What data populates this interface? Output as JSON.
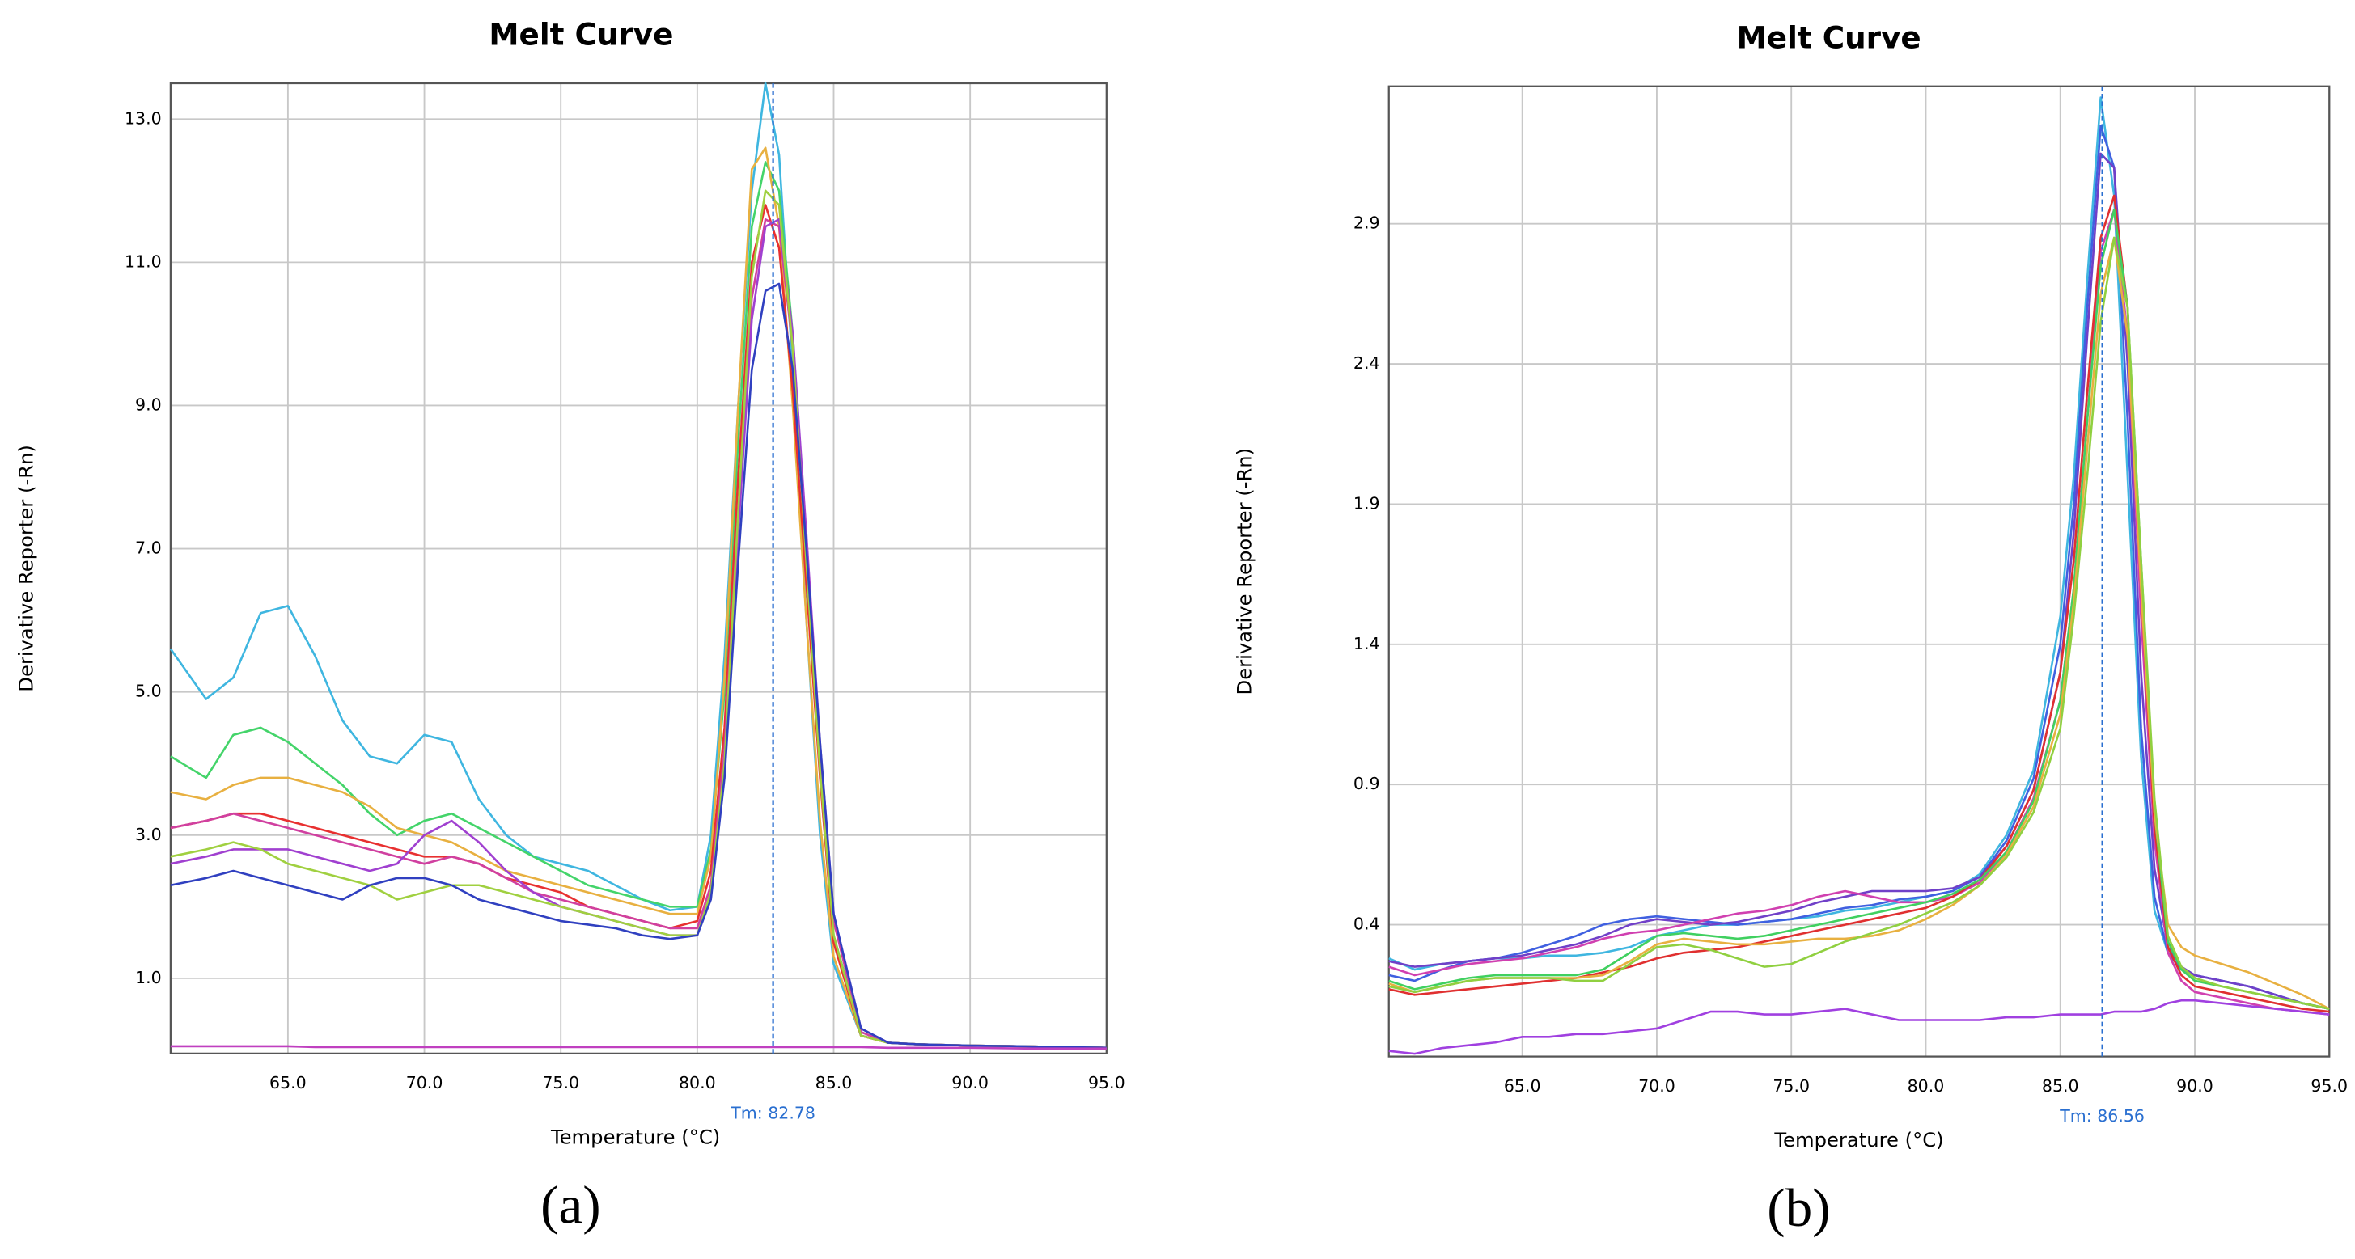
{
  "chart_data": [
    {
      "type": "line",
      "title": "Melt Curve",
      "xlabel": "Temperature (°C)",
      "ylabel": "Derivative Reporter (-Rn)",
      "caption": "(a)",
      "tm": {
        "value": 82.78,
        "label": "Tm: 82.78"
      },
      "xlim": [
        60.7,
        95
      ],
      "ylim": [
        -0.05,
        13.5
      ],
      "grid": true,
      "xticks": [
        {
          "value": 65,
          "label": "65.0"
        },
        {
          "value": 70,
          "label": "70.0"
        },
        {
          "value": 75,
          "label": "75.0"
        },
        {
          "value": 80,
          "label": "80.0"
        },
        {
          "value": 85,
          "label": "85.0"
        },
        {
          "value": 90,
          "label": "90.0"
        },
        {
          "value": 95,
          "label": "95.0"
        }
      ],
      "yticks": [
        {
          "value": 1,
          "label": "1.0"
        },
        {
          "value": 3,
          "label": "3.0"
        },
        {
          "value": 5,
          "label": "5.0"
        },
        {
          "value": 7,
          "label": "7.0"
        },
        {
          "value": 9,
          "label": "9.0"
        },
        {
          "value": 11,
          "label": "11.0"
        },
        {
          "value": 13,
          "label": "13.0"
        }
      ],
      "x": [
        60.7,
        62,
        63,
        64,
        65,
        66,
        67,
        68,
        69,
        70,
        71,
        72,
        73,
        74,
        75,
        76,
        77,
        78,
        79,
        80,
        80.5,
        81,
        81.5,
        82,
        82.5,
        83,
        83.5,
        84,
        84.5,
        85,
        86,
        87,
        88,
        90,
        92,
        95
      ],
      "series": [
        {
          "color": "#3fb6e0",
          "values": [
            5.6,
            4.9,
            5.2,
            6.1,
            6.2,
            5.5,
            4.6,
            4.1,
            4.0,
            4.4,
            4.3,
            3.5,
            3.0,
            2.7,
            2.6,
            2.5,
            2.3,
            2.1,
            1.95,
            2.0,
            3.0,
            5.5,
            9.0,
            12.0,
            13.5,
            12.5,
            9.5,
            6.0,
            3.0,
            1.2,
            0.2,
            0.1,
            0.08,
            0.06,
            0.05,
            0.03
          ]
        },
        {
          "color": "#44d46a",
          "values": [
            4.1,
            3.8,
            4.4,
            4.5,
            4.3,
            4.0,
            3.7,
            3.3,
            3.0,
            3.2,
            3.3,
            3.1,
            2.9,
            2.7,
            2.5,
            2.3,
            2.2,
            2.1,
            2.0,
            2.0,
            2.8,
            5.0,
            8.5,
            11.5,
            12.4,
            12.0,
            10.0,
            7.0,
            4.0,
            1.6,
            0.25,
            0.1,
            0.08,
            0.06,
            0.05,
            0.03
          ]
        },
        {
          "color": "#e8b040",
          "values": [
            3.6,
            3.5,
            3.7,
            3.8,
            3.8,
            3.7,
            3.6,
            3.4,
            3.1,
            3.0,
            2.9,
            2.7,
            2.5,
            2.4,
            2.3,
            2.2,
            2.1,
            2.0,
            1.9,
            1.9,
            2.7,
            5.2,
            9.0,
            12.3,
            12.6,
            11.5,
            9.0,
            6.0,
            3.2,
            1.3,
            0.2,
            0.1,
            0.08,
            0.06,
            0.05,
            0.03
          ]
        },
        {
          "color": "#e83030",
          "values": [
            3.1,
            3.2,
            3.3,
            3.3,
            3.2,
            3.1,
            3.0,
            2.9,
            2.8,
            2.7,
            2.7,
            2.6,
            2.4,
            2.3,
            2.2,
            2.0,
            1.9,
            1.8,
            1.7,
            1.8,
            2.5,
            4.5,
            8.0,
            11.0,
            11.8,
            11.2,
            9.2,
            6.5,
            3.8,
            1.5,
            0.2,
            0.1,
            0.08,
            0.06,
            0.05,
            0.03
          ]
        },
        {
          "color": "#d040a0",
          "values": [
            3.1,
            3.2,
            3.3,
            3.2,
            3.1,
            3.0,
            2.9,
            2.8,
            2.7,
            2.6,
            2.7,
            2.6,
            2.4,
            2.2,
            2.1,
            2.0,
            1.9,
            1.8,
            1.7,
            1.7,
            2.3,
            4.2,
            7.5,
            10.5,
            11.6,
            11.5,
            9.8,
            7.0,
            4.2,
            1.8,
            0.25,
            0.1,
            0.08,
            0.06,
            0.05,
            0.03
          ]
        },
        {
          "color": "#a040d0",
          "values": [
            2.6,
            2.7,
            2.8,
            2.8,
            2.8,
            2.7,
            2.6,
            2.5,
            2.6,
            3.0,
            3.2,
            2.9,
            2.5,
            2.2,
            2.0,
            1.9,
            1.8,
            1.7,
            1.6,
            1.6,
            2.2,
            4.0,
            7.2,
            10.2,
            11.5,
            11.6,
            10.0,
            7.2,
            4.3,
            1.9,
            0.3,
            0.1,
            0.08,
            0.06,
            0.05,
            0.03
          ]
        },
        {
          "color": "#a0d040",
          "values": [
            2.7,
            2.8,
            2.9,
            2.8,
            2.6,
            2.5,
            2.4,
            2.3,
            2.1,
            2.2,
            2.3,
            2.3,
            2.2,
            2.1,
            2.0,
            1.9,
            1.8,
            1.7,
            1.6,
            1.6,
            2.2,
            4.0,
            7.5,
            10.8,
            12.0,
            11.8,
            9.8,
            6.8,
            3.9,
            1.6,
            0.2,
            0.1,
            0.08,
            0.06,
            0.05,
            0.03
          ]
        },
        {
          "color": "#3040c0",
          "values": [
            2.3,
            2.4,
            2.5,
            2.4,
            2.3,
            2.2,
            2.1,
            2.3,
            2.4,
            2.4,
            2.3,
            2.1,
            2.0,
            1.9,
            1.8,
            1.75,
            1.7,
            1.6,
            1.55,
            1.6,
            2.1,
            3.8,
            6.8,
            9.5,
            10.6,
            10.7,
            9.5,
            7.0,
            4.3,
            1.9,
            0.3,
            0.1,
            0.08,
            0.06,
            0.05,
            0.03
          ]
        },
        {
          "color": "#c040c0",
          "values": [
            0.05,
            0.05,
            0.05,
            0.05,
            0.05,
            0.04,
            0.04,
            0.04,
            0.04,
            0.04,
            0.04,
            0.04,
            0.04,
            0.04,
            0.04,
            0.04,
            0.04,
            0.04,
            0.04,
            0.04,
            0.04,
            0.04,
            0.04,
            0.04,
            0.04,
            0.04,
            0.04,
            0.04,
            0.04,
            0.04,
            0.04,
            0.03,
            0.03,
            0.03,
            0.02,
            0.02
          ]
        }
      ]
    },
    {
      "type": "line",
      "title": "Melt Curve",
      "xlabel": "Temperature (°C)",
      "ylabel": "Derivative Reporter (-Rn)",
      "caption": "(b)",
      "tm": {
        "value": 86.56,
        "label": "Tm: 86.56"
      },
      "xlim": [
        60.04,
        95
      ],
      "ylim": [
        -0.07,
        3.39
      ],
      "grid": true,
      "xticks": [
        {
          "value": 65,
          "label": "65.0"
        },
        {
          "value": 70,
          "label": "70.0"
        },
        {
          "value": 75,
          "label": "75.0"
        },
        {
          "value": 80,
          "label": "80.0"
        },
        {
          "value": 85,
          "label": "85.0"
        },
        {
          "value": 90,
          "label": "90.0"
        },
        {
          "value": 95,
          "label": "95.0"
        }
      ],
      "yticks": [
        0.4,
        0.9,
        1.4,
        1.9,
        2.4,
        2.9
      ],
      "x": [
        60.04,
        61,
        62,
        63,
        64,
        65,
        66,
        67,
        68,
        69,
        70,
        71,
        72,
        73,
        74,
        75,
        76,
        77,
        78,
        79,
        80,
        81,
        82,
        83,
        84,
        85,
        85.5,
        86,
        86.5,
        87,
        87.5,
        88,
        88.5,
        89,
        89.5,
        90,
        91,
        92,
        93,
        94,
        95
      ],
      "series": [
        {
          "color": "#3fb6e0",
          "values": [
            0.28,
            0.24,
            0.26,
            0.27,
            0.28,
            0.28,
            0.29,
            0.29,
            0.3,
            0.32,
            0.36,
            0.38,
            0.4,
            0.4,
            0.41,
            0.42,
            0.43,
            0.45,
            0.46,
            0.48,
            0.5,
            0.52,
            0.58,
            0.72,
            0.95,
            1.5,
            2.0,
            2.7,
            3.35,
            3.0,
            2.0,
            1.0,
            0.45,
            0.3,
            0.24,
            0.22,
            0.2,
            0.18,
            0.15,
            0.12,
            0.1
          ]
        },
        {
          "color": "#4060e0",
          "values": [
            0.22,
            0.2,
            0.24,
            0.27,
            0.28,
            0.3,
            0.33,
            0.36,
            0.4,
            0.42,
            0.43,
            0.42,
            0.41,
            0.4,
            0.41,
            0.42,
            0.44,
            0.46,
            0.47,
            0.49,
            0.5,
            0.52,
            0.57,
            0.7,
            0.92,
            1.4,
            1.9,
            2.6,
            3.25,
            3.1,
            2.2,
            1.1,
            0.5,
            0.3,
            0.24,
            0.22,
            0.2,
            0.18,
            0.15,
            0.12,
            0.1
          ]
        },
        {
          "color": "#7040c8",
          "values": [
            0.27,
            0.25,
            0.26,
            0.27,
            0.28,
            0.29,
            0.31,
            0.33,
            0.36,
            0.4,
            0.42,
            0.41,
            0.4,
            0.41,
            0.43,
            0.45,
            0.48,
            0.5,
            0.52,
            0.52,
            0.52,
            0.53,
            0.57,
            0.68,
            0.88,
            1.3,
            1.8,
            2.5,
            3.15,
            3.1,
            2.4,
            1.3,
            0.6,
            0.32,
            0.25,
            0.22,
            0.2,
            0.18,
            0.15,
            0.12,
            0.1
          ]
        },
        {
          "color": "#d040b0",
          "values": [
            0.25,
            0.22,
            0.24,
            0.26,
            0.27,
            0.28,
            0.3,
            0.32,
            0.35,
            0.37,
            0.38,
            0.4,
            0.42,
            0.44,
            0.45,
            0.47,
            0.5,
            0.52,
            0.5,
            0.48,
            0.48,
            0.5,
            0.55,
            0.66,
            0.85,
            1.2,
            1.6,
            2.2,
            2.8,
            2.95,
            2.5,
            1.5,
            0.7,
            0.3,
            0.2,
            0.16,
            0.14,
            0.12,
            0.1,
            0.09,
            0.08
          ]
        },
        {
          "color": "#e03030",
          "values": [
            0.17,
            0.15,
            0.16,
            0.17,
            0.18,
            0.19,
            0.2,
            0.21,
            0.23,
            0.25,
            0.28,
            0.3,
            0.31,
            0.32,
            0.34,
            0.36,
            0.38,
            0.4,
            0.42,
            0.44,
            0.46,
            0.5,
            0.56,
            0.68,
            0.88,
            1.3,
            1.7,
            2.3,
            2.85,
            3.0,
            2.6,
            1.6,
            0.75,
            0.32,
            0.22,
            0.18,
            0.16,
            0.14,
            0.12,
            0.1,
            0.09
          ]
        },
        {
          "color": "#40d060",
          "values": [
            0.2,
            0.17,
            0.19,
            0.21,
            0.22,
            0.22,
            0.22,
            0.22,
            0.24,
            0.3,
            0.36,
            0.37,
            0.36,
            0.35,
            0.36,
            0.38,
            0.4,
            0.42,
            0.44,
            0.46,
            0.48,
            0.51,
            0.56,
            0.66,
            0.84,
            1.2,
            1.6,
            2.2,
            2.75,
            2.95,
            2.6,
            1.7,
            0.8,
            0.34,
            0.24,
            0.2,
            0.18,
            0.16,
            0.14,
            0.12,
            0.1
          ]
        },
        {
          "color": "#e8b040",
          "values": [
            0.19,
            0.16,
            0.18,
            0.2,
            0.21,
            0.21,
            0.21,
            0.21,
            0.22,
            0.27,
            0.33,
            0.35,
            0.34,
            0.33,
            0.33,
            0.34,
            0.35,
            0.35,
            0.36,
            0.38,
            0.42,
            0.47,
            0.54,
            0.65,
            0.82,
            1.15,
            1.55,
            2.1,
            2.65,
            2.85,
            2.5,
            1.6,
            0.8,
            0.4,
            0.32,
            0.29,
            0.26,
            0.23,
            0.19,
            0.15,
            0.1
          ]
        },
        {
          "color": "#90d040",
          "values": [
            0.18,
            0.16,
            0.18,
            0.2,
            0.21,
            0.21,
            0.21,
            0.2,
            0.2,
            0.26,
            0.32,
            0.33,
            0.31,
            0.28,
            0.25,
            0.26,
            0.3,
            0.34,
            0.37,
            0.4,
            0.44,
            0.48,
            0.54,
            0.64,
            0.8,
            1.1,
            1.5,
            2.0,
            2.55,
            2.85,
            2.6,
            1.7,
            0.85,
            0.36,
            0.25,
            0.21,
            0.18,
            0.16,
            0.14,
            0.12,
            0.1
          ]
        },
        {
          "color": "#a040e0",
          "values": [
            -0.05,
            -0.06,
            -0.04,
            -0.03,
            -0.02,
            0.0,
            0.0,
            0.01,
            0.01,
            0.02,
            0.03,
            0.06,
            0.09,
            0.09,
            0.08,
            0.08,
            0.09,
            0.1,
            0.08,
            0.06,
            0.06,
            0.06,
            0.06,
            0.07,
            0.07,
            0.08,
            0.08,
            0.08,
            0.08,
            0.09,
            0.09,
            0.09,
            0.1,
            0.12,
            0.13,
            0.13,
            0.12,
            0.11,
            0.1,
            0.09,
            0.08
          ]
        }
      ]
    }
  ]
}
